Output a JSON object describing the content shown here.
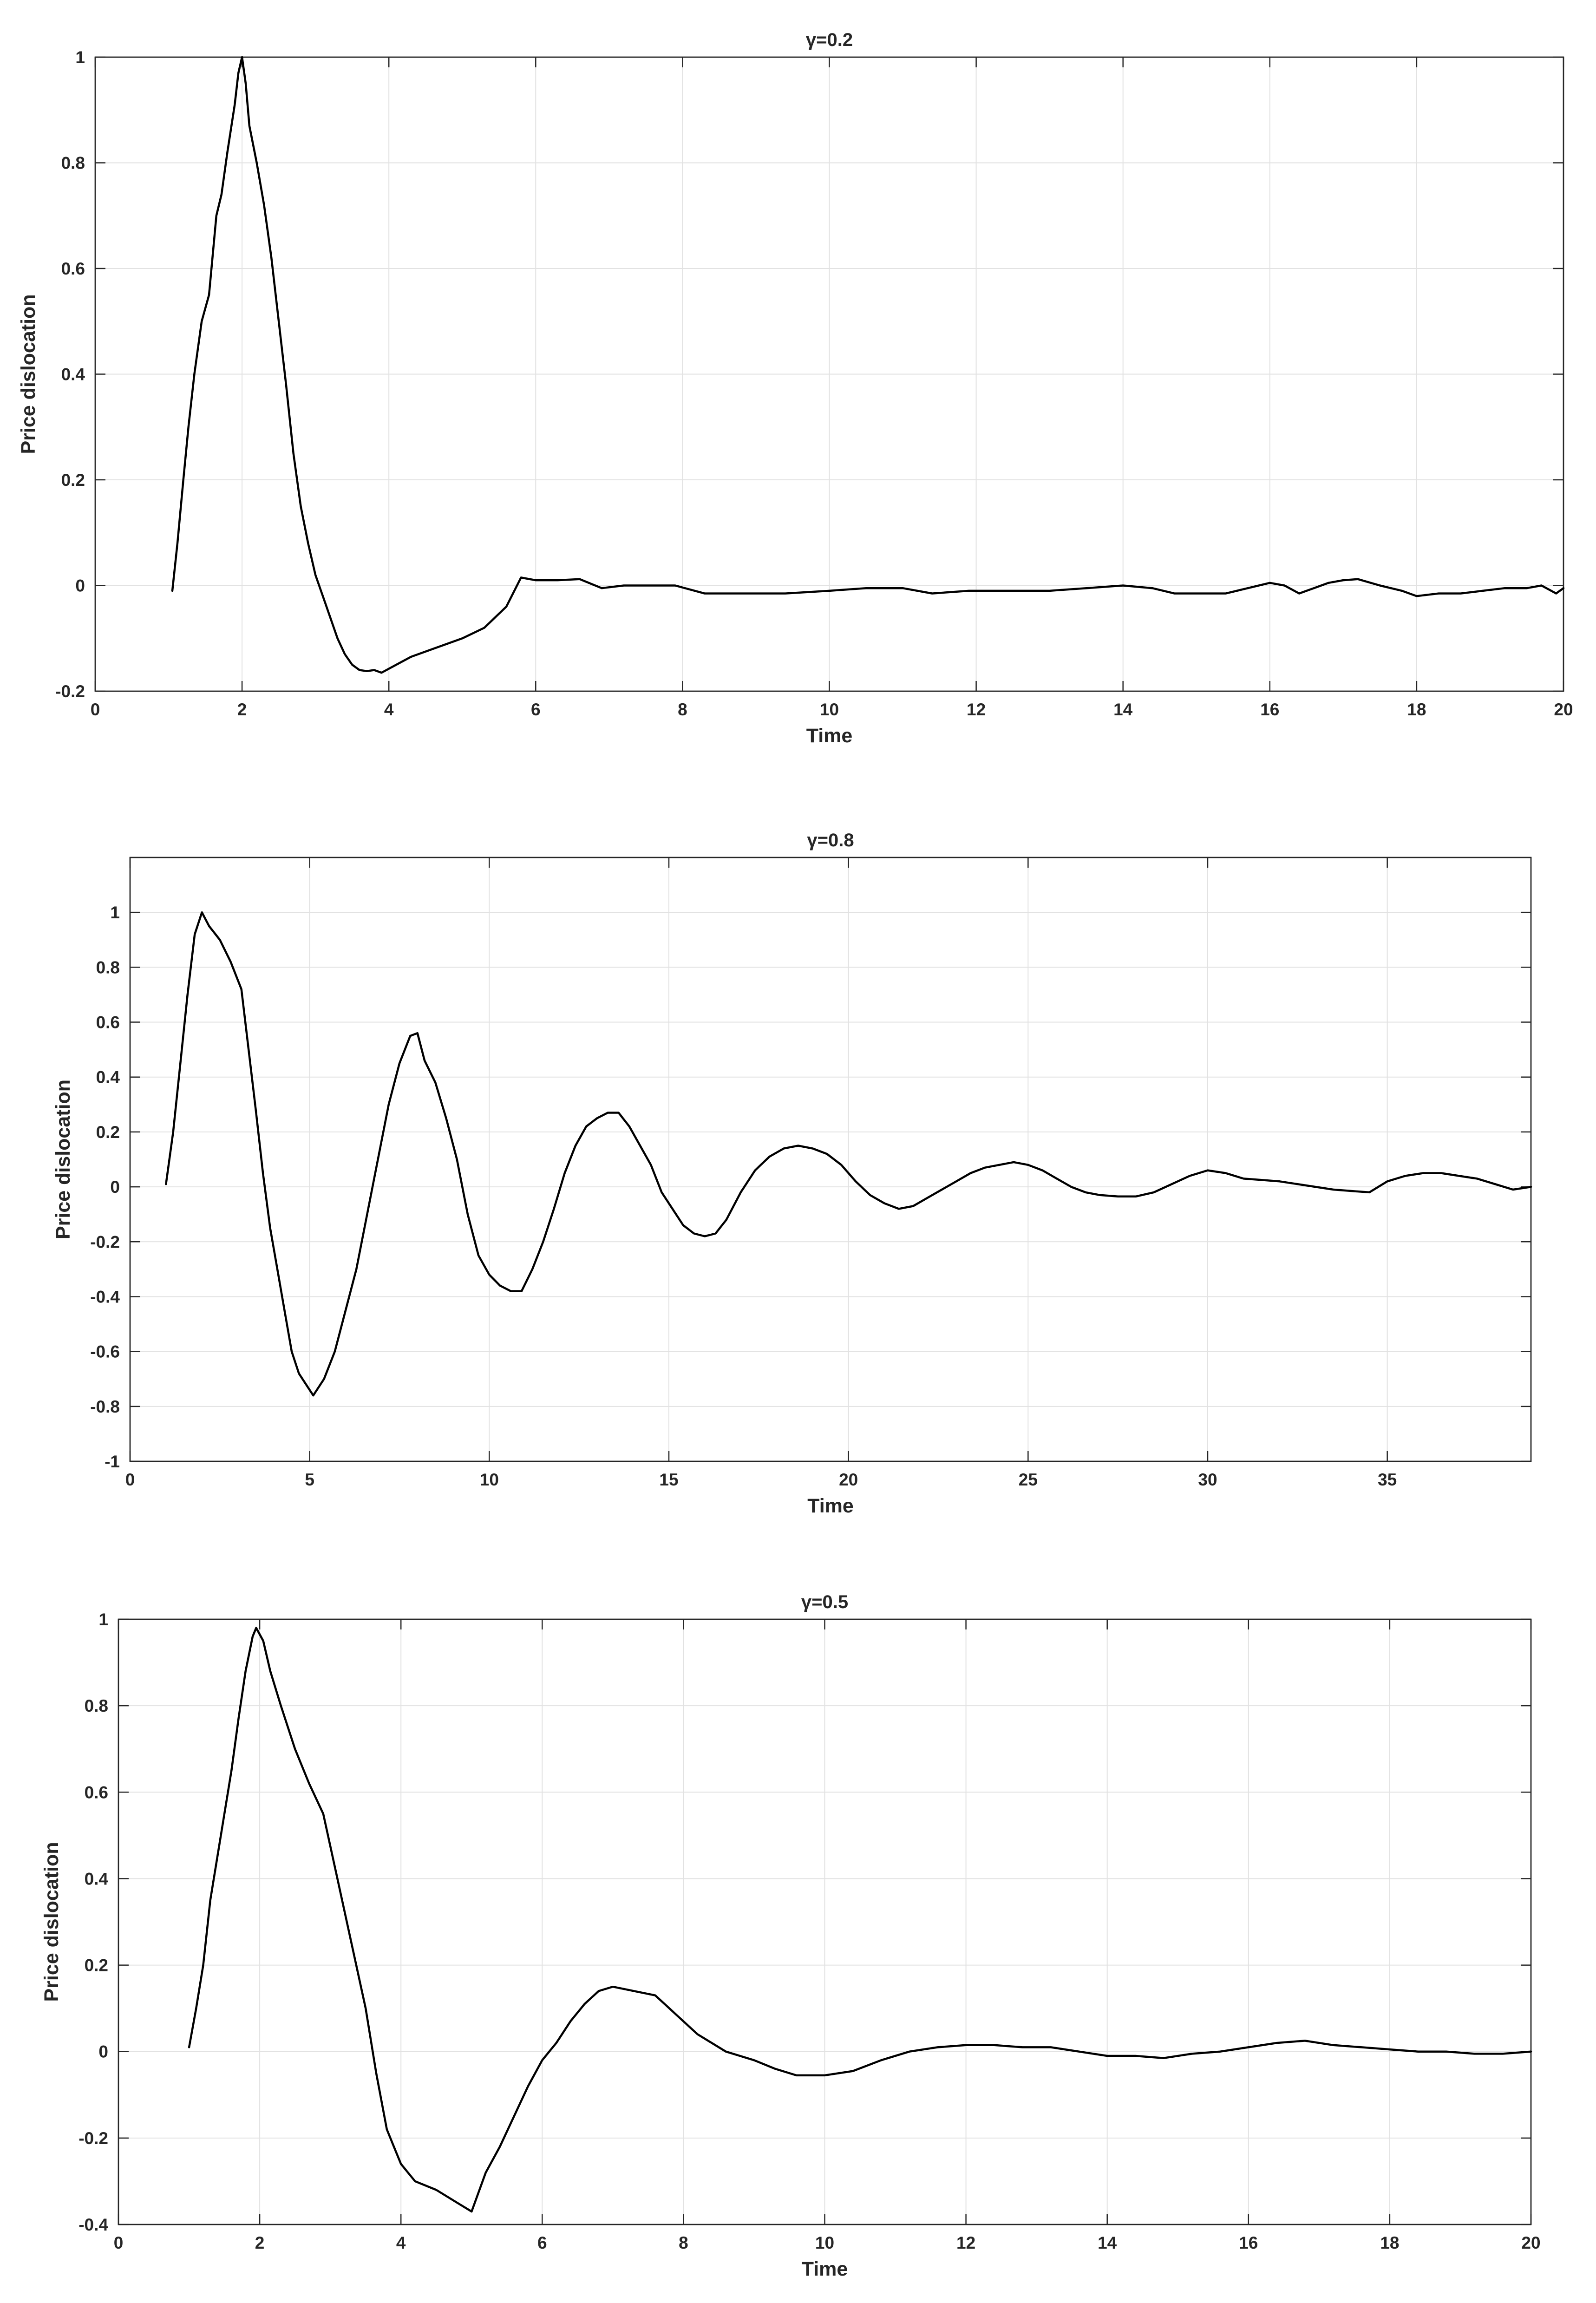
{
  "chart_data": [
    {
      "type": "line",
      "title": "γ=0.2",
      "xlabel": "Time",
      "ylabel": "Price dislocation",
      "xlim": [
        0,
        20
      ],
      "ylim": [
        -0.2,
        1
      ],
      "xticks": [
        0,
        2,
        4,
        6,
        8,
        10,
        12,
        14,
        16,
        18,
        20
      ],
      "yticks": [
        -0.2,
        0,
        0.2,
        0.4,
        0.6,
        0.8,
        1
      ],
      "xtick_labels": [
        "0",
        "2",
        "4",
        "6",
        "8",
        "10",
        "12",
        "14",
        "16",
        "18",
        "20"
      ],
      "ytick_labels": [
        "-0.2",
        "0",
        "0.2",
        "0.4",
        "0.6",
        "0.8",
        "1"
      ],
      "grid": true,
      "series": [
        {
          "color": "#000000",
          "x": [
            1.05,
            1.12,
            1.2,
            1.27,
            1.35,
            1.45,
            1.55,
            1.65,
            1.72,
            1.8,
            1.9,
            1.95,
            2.0,
            2.05,
            2.1,
            2.2,
            2.3,
            2.4,
            2.5,
            2.6,
            2.7,
            2.8,
            2.9,
            3.0,
            3.1,
            3.2,
            3.3,
            3.4,
            3.5,
            3.6,
            3.7,
            3.8,
            3.9,
            4.1,
            4.3,
            4.6,
            5.0,
            5.3,
            5.6,
            5.8,
            6.0,
            6.3,
            6.6,
            6.9,
            7.2,
            7.5,
            7.9,
            8.3,
            8.8,
            9.4,
            10.0,
            10.5,
            11.0,
            11.4,
            11.9,
            12.5,
            13.0,
            13.5,
            14.0,
            14.4,
            14.7,
            15.0,
            15.4,
            15.7,
            16.0,
            16.2,
            16.4,
            16.6,
            16.8,
            17.0,
            17.2,
            17.5,
            17.8,
            18.0,
            18.3,
            18.6,
            18.9,
            19.2,
            19.5,
            19.7,
            19.9,
            20.0
          ],
          "y": [
            -0.01,
            0.08,
            0.2,
            0.3,
            0.4,
            0.5,
            0.55,
            0.7,
            0.74,
            0.82,
            0.91,
            0.97,
            1.0,
            0.95,
            0.87,
            0.8,
            0.72,
            0.62,
            0.5,
            0.38,
            0.25,
            0.15,
            0.08,
            0.02,
            -0.02,
            -0.06,
            -0.1,
            -0.13,
            -0.15,
            -0.16,
            -0.162,
            -0.16,
            -0.165,
            -0.15,
            -0.135,
            -0.12,
            -0.1,
            -0.08,
            -0.04,
            0.015,
            0.01,
            0.01,
            0.012,
            -0.005,
            0.0,
            0.0,
            0.0,
            -0.015,
            -0.015,
            -0.015,
            -0.01,
            -0.005,
            -0.005,
            -0.015,
            -0.01,
            -0.01,
            -0.01,
            -0.005,
            0.0,
            -0.005,
            -0.015,
            -0.015,
            -0.015,
            -0.005,
            0.005,
            0.0,
            -0.015,
            -0.005,
            0.005,
            0.01,
            0.012,
            0.0,
            -0.01,
            -0.02,
            -0.015,
            -0.015,
            -0.01,
            -0.005,
            -0.005,
            0.0,
            -0.015,
            -0.005
          ]
        }
      ]
    },
    {
      "type": "line",
      "title": "γ=0.8",
      "xlabel": "Time",
      "ylabel": "Price dislocation",
      "xlim": [
        0,
        39
      ],
      "ylim": [
        -1,
        1.2
      ],
      "xticks": [
        0,
        5,
        10,
        15,
        20,
        25,
        30,
        35
      ],
      "yticks": [
        -1,
        -0.8,
        -0.6,
        -0.4,
        -0.2,
        0,
        0.2,
        0.4,
        0.6,
        0.8,
        1
      ],
      "xtick_labels": [
        "0",
        "5",
        "10",
        "15",
        "20",
        "25",
        "30",
        "35"
      ],
      "ytick_labels": [
        "-1",
        "-0.8",
        "-0.6",
        "-0.4",
        "-0.2",
        "0",
        "0.2",
        "0.4",
        "0.6",
        "0.8",
        "1"
      ],
      "grid": true,
      "series": [
        {
          "color": "#000000",
          "x": [
            1.0,
            1.2,
            1.4,
            1.6,
            1.8,
            2.0,
            2.2,
            2.5,
            2.8,
            3.1,
            3.3,
            3.5,
            3.7,
            3.9,
            4.1,
            4.3,
            4.5,
            4.7,
            4.9,
            5.1,
            5.4,
            5.7,
            6.0,
            6.3,
            6.6,
            6.9,
            7.2,
            7.5,
            7.8,
            8.0,
            8.2,
            8.5,
            8.8,
            9.1,
            9.4,
            9.7,
            10.0,
            10.3,
            10.6,
            10.9,
            11.2,
            11.5,
            11.8,
            12.1,
            12.4,
            12.7,
            13.0,
            13.3,
            13.6,
            13.9,
            14.2,
            14.5,
            14.8,
            15.1,
            15.4,
            15.7,
            16.0,
            16.3,
            16.6,
            17.0,
            17.4,
            17.8,
            18.2,
            18.6,
            19.0,
            19.4,
            19.8,
            20.2,
            20.6,
            21.0,
            21.4,
            21.8,
            22.2,
            22.6,
            23.0,
            23.4,
            23.8,
            24.2,
            24.6,
            25.0,
            25.4,
            25.8,
            26.2,
            26.6,
            27.0,
            27.5,
            28.0,
            28.5,
            29.0,
            29.5,
            30.0,
            30.5,
            31.0,
            31.5,
            32.0,
            32.5,
            33.0,
            33.5,
            34.0,
            34.5,
            35.0,
            35.5,
            36.0,
            36.5,
            37.0,
            37.5,
            38.0,
            38.5,
            39.0
          ],
          "y": [
            0.01,
            0.2,
            0.45,
            0.7,
            0.92,
            1.0,
            0.95,
            0.9,
            0.82,
            0.72,
            0.5,
            0.28,
            0.05,
            -0.15,
            -0.3,
            -0.45,
            -0.6,
            -0.68,
            -0.72,
            -0.76,
            -0.7,
            -0.6,
            -0.45,
            -0.3,
            -0.1,
            0.1,
            0.3,
            0.45,
            0.55,
            0.56,
            0.46,
            0.38,
            0.25,
            0.1,
            -0.1,
            -0.25,
            -0.32,
            -0.36,
            -0.38,
            -0.38,
            -0.3,
            -0.2,
            -0.08,
            0.05,
            0.15,
            0.22,
            0.25,
            0.27,
            0.27,
            0.22,
            0.15,
            0.08,
            -0.02,
            -0.08,
            -0.14,
            -0.17,
            -0.18,
            -0.17,
            -0.12,
            -0.02,
            0.06,
            0.11,
            0.14,
            0.15,
            0.14,
            0.12,
            0.08,
            0.02,
            -0.03,
            -0.06,
            -0.08,
            -0.07,
            -0.04,
            -0.01,
            0.02,
            0.05,
            0.07,
            0.08,
            0.09,
            0.08,
            0.06,
            0.03,
            0.0,
            -0.02,
            -0.03,
            -0.035,
            -0.035,
            -0.02,
            0.01,
            0.04,
            0.06,
            0.05,
            0.03,
            0.025,
            0.02,
            0.01,
            0.0,
            -0.01,
            -0.015,
            -0.02,
            0.02,
            0.04,
            0.05,
            0.05,
            0.04,
            0.03,
            0.01,
            -0.01,
            0.0
          ]
        }
      ]
    },
    {
      "type": "line",
      "title": "γ=0.5",
      "xlabel": "Time",
      "ylabel": "Price dislocation",
      "xlim": [
        0,
        20
      ],
      "ylim": [
        -0.4,
        1
      ],
      "xticks": [
        0,
        2,
        4,
        6,
        8,
        10,
        12,
        14,
        16,
        18,
        20
      ],
      "yticks": [
        -0.4,
        -0.2,
        0,
        0.2,
        0.4,
        0.6,
        0.8,
        1
      ],
      "xtick_labels": [
        "0",
        "2",
        "4",
        "6",
        "8",
        "10",
        "12",
        "14",
        "16",
        "18",
        "20"
      ],
      "ytick_labels": [
        "-0.4",
        "-0.2",
        "0",
        "0.2",
        "0.4",
        "0.6",
        "0.8",
        "1"
      ],
      "grid": true,
      "series": [
        {
          "color": "#000000",
          "x": [
            1.0,
            1.1,
            1.2,
            1.3,
            1.4,
            1.5,
            1.6,
            1.7,
            1.8,
            1.9,
            1.95,
            2.05,
            2.15,
            2.3,
            2.5,
            2.7,
            2.9,
            3.1,
            3.3,
            3.5,
            3.65,
            3.8,
            3.9,
            4.0,
            4.2,
            4.5,
            4.8,
            5.0,
            5.2,
            5.4,
            5.6,
            5.8,
            6.0,
            6.2,
            6.4,
            6.6,
            6.8,
            7.0,
            7.3,
            7.6,
            7.8,
            8.0,
            8.2,
            8.4,
            8.6,
            8.8,
            9.0,
            9.3,
            9.6,
            10.0,
            10.4,
            10.8,
            11.2,
            11.6,
            12.0,
            12.4,
            12.8,
            13.2,
            13.6,
            14.0,
            14.4,
            14.8,
            15.2,
            15.6,
            16.0,
            16.4,
            16.8,
            17.2,
            17.6,
            18.0,
            18.4,
            18.8,
            19.2,
            19.6,
            20.0
          ],
          "y": [
            0.01,
            0.1,
            0.2,
            0.35,
            0.45,
            0.55,
            0.65,
            0.77,
            0.88,
            0.96,
            0.98,
            0.95,
            0.88,
            0.8,
            0.7,
            0.62,
            0.55,
            0.4,
            0.25,
            0.1,
            -0.05,
            -0.18,
            -0.22,
            -0.26,
            -0.3,
            -0.32,
            -0.35,
            -0.37,
            -0.28,
            -0.22,
            -0.15,
            -0.08,
            -0.02,
            0.02,
            0.07,
            0.11,
            0.14,
            0.15,
            0.14,
            0.13,
            0.1,
            0.07,
            0.04,
            0.02,
            0.0,
            -0.01,
            -0.02,
            -0.04,
            -0.055,
            -0.055,
            -0.045,
            -0.02,
            0.0,
            0.01,
            0.015,
            0.015,
            0.01,
            0.01,
            0.0,
            -0.01,
            -0.01,
            -0.015,
            -0.005,
            0.0,
            0.01,
            0.02,
            0.025,
            0.015,
            0.01,
            0.005,
            0.0,
            0.0,
            -0.005,
            -0.005,
            0.0
          ]
        }
      ]
    }
  ]
}
